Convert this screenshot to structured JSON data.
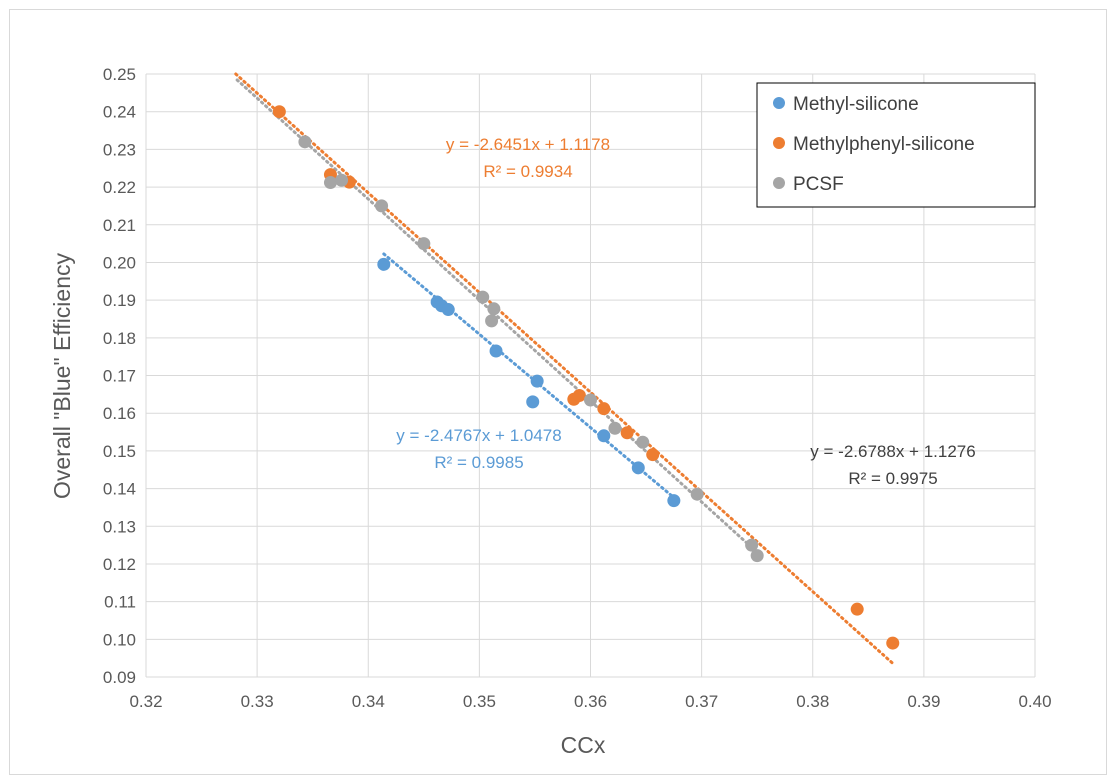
{
  "chart_data": {
    "type": "scatter",
    "title": "",
    "xlabel": "CCx",
    "ylabel": "Overall \"Blue\" Efficiency",
    "xlim": [
      0.32,
      0.4
    ],
    "ylim": [
      0.09,
      0.25
    ],
    "x_ticks": [
      "0.32",
      "0.33",
      "0.34",
      "0.35",
      "0.36",
      "0.37",
      "0.38",
      "0.39",
      "0.40"
    ],
    "y_ticks": [
      "0.25",
      "0.24",
      "0.23",
      "0.22",
      "0.21",
      "0.20",
      "0.19",
      "0.18",
      "0.17",
      "0.16",
      "0.15",
      "0.14",
      "0.13",
      "0.12",
      "0.11",
      "0.10",
      "0.09"
    ],
    "grid": "vertical and horizontal major gridlines",
    "legend_position": "top-right",
    "series": [
      {
        "name": "Methyl-silicone",
        "color": "#5b9bd5",
        "points": [
          [
            0.3414,
            0.1995
          ],
          [
            0.3462,
            0.1895
          ],
          [
            0.3466,
            0.1885
          ],
          [
            0.3472,
            0.1875
          ],
          [
            0.3515,
            0.1765
          ],
          [
            0.3552,
            0.1685
          ],
          [
            0.3548,
            0.163
          ],
          [
            0.3612,
            0.154
          ],
          [
            0.3643,
            0.1455
          ],
          [
            0.3675,
            0.1368
          ]
        ],
        "trendline": {
          "slope": -2.4767,
          "intercept": 1.0478,
          "x_range": [
            0.3414,
            0.3675
          ],
          "equation": "y = -2.4767x + 1.0478",
          "r2": "R² = 0.9985"
        }
      },
      {
        "name": "Methylphenyl-silicone",
        "color": "#ed7d31",
        "points": [
          [
            0.332,
            0.24
          ],
          [
            0.3366,
            0.2233
          ],
          [
            0.3383,
            0.2213
          ],
          [
            0.3585,
            0.1637
          ],
          [
            0.359,
            0.1647
          ],
          [
            0.3612,
            0.1612
          ],
          [
            0.3633,
            0.1548
          ],
          [
            0.3656,
            0.149
          ],
          [
            0.384,
            0.108
          ],
          [
            0.3872,
            0.099
          ]
        ],
        "trendline": {
          "slope": -2.6451,
          "intercept": 1.1178,
          "x_range": [
            0.328,
            0.3872
          ],
          "equation": "y = -2.6451x + 1.1178",
          "r2": "R² = 0.9934"
        }
      },
      {
        "name": "PCSF",
        "color": "#a5a5a5",
        "points": [
          [
            0.3343,
            0.232
          ],
          [
            0.3366,
            0.2212
          ],
          [
            0.3376,
            0.2218
          ],
          [
            0.3412,
            0.215
          ],
          [
            0.345,
            0.205
          ],
          [
            0.3503,
            0.1908
          ],
          [
            0.3513,
            0.1877
          ],
          [
            0.3511,
            0.1845
          ],
          [
            0.36,
            0.1635
          ],
          [
            0.3622,
            0.156
          ],
          [
            0.3647,
            0.1523
          ],
          [
            0.3696,
            0.1385
          ],
          [
            0.3745,
            0.125
          ],
          [
            0.375,
            0.1222
          ]
        ],
        "trendline": {
          "slope": -2.6788,
          "intercept": 1.1276,
          "x_range": [
            0.3282,
            0.375
          ],
          "equation": "y = -2.6788x + 1.1276",
          "r2": "R² = 0.9975"
        }
      }
    ],
    "annotations": [
      {
        "series": "Methylphenyl-silicone",
        "equation": "y = -2.6451x + 1.1178",
        "r2": "R² = 0.9934"
      },
      {
        "series": "Methyl-silicone",
        "equation": "y = -2.4767x + 1.0478",
        "r2": "R² = 0.9985"
      },
      {
        "series": "PCSF",
        "equation": "y = -2.6788x + 1.1276",
        "r2": "R² = 0.9975"
      }
    ]
  },
  "colors": {
    "grid": "#d9d9d9",
    "axis_text": "#595959",
    "pcsf_equation_text": "#404040"
  }
}
